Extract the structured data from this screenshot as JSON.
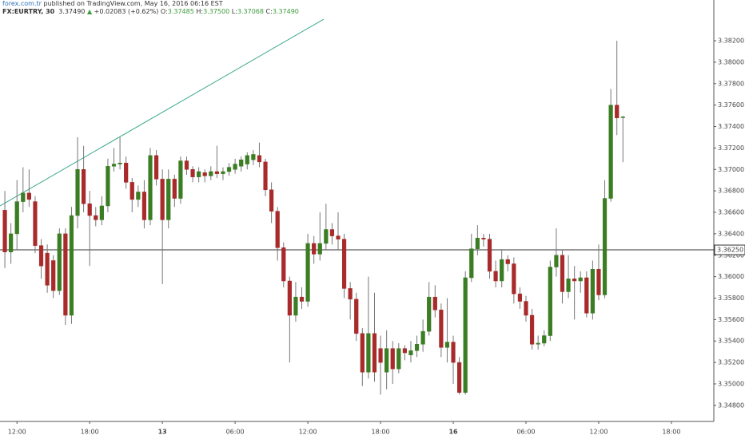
{
  "header": {
    "publisher": "forex.com.tr",
    "published": "published on TradingView.com, May 16, 2016 06:16 EST",
    "symbol": "FX:EURTRY, 30",
    "price": "3.37490",
    "arrow": "▲",
    "change": "+0.02083 (+0.62%)",
    "ohlc": [
      {
        "label": "O:",
        "value": "3.37485"
      },
      {
        "label": "H:",
        "value": "3.37500"
      },
      {
        "label": "L:",
        "value": "3.37068"
      },
      {
        "label": "C:",
        "value": "3.37490"
      }
    ]
  },
  "chart_data": {
    "type": "candlestick",
    "up_color": "#3a7d22",
    "down_color": "#a82a2a",
    "grid": false,
    "open": [
      3.3662,
      3.3623,
      3.364,
      3.367,
      3.3678,
      3.367,
      3.3629,
      3.3622,
      3.3615,
      3.3587,
      3.364,
      3.3564,
      3.3657,
      3.37,
      3.3668,
      3.3657,
      3.3653,
      3.3666,
      3.3703,
      3.3705,
      3.3706,
      3.3688,
      3.3672,
      3.3679,
      3.3653,
      3.3713,
      3.3691,
      3.3653,
      3.3691,
      3.3673,
      3.3708,
      3.37,
      3.3693,
      3.3697,
      3.3694,
      3.3698,
      3.3696,
      3.3698,
      3.37,
      3.3703,
      3.3705,
      3.3709,
      3.3713,
      3.3707,
      3.3681,
      3.3661,
      3.3627,
      3.3596,
      3.3564,
      3.3581,
      3.3577,
      3.3631,
      3.3621,
      3.3631,
      3.3644,
      3.3638,
      3.3635,
      3.3589,
      3.3579,
      3.3547,
      3.3511,
      3.3547,
      3.3533,
      3.3511,
      3.3533,
      3.3514,
      3.3533,
      3.3527,
      3.3531,
      3.3537,
      3.3549,
      3.3581,
      3.3569,
      3.3534,
      3.3539,
      3.352,
      3.3492,
      3.3599,
      3.3626,
      3.3636,
      3.3635,
      3.3605,
      3.3596,
      3.3616,
      3.3612,
      3.3584,
      3.3577,
      3.3564,
      3.3537,
      3.3538,
      3.3545,
      3.3609,
      3.362,
      3.3586,
      3.3598,
      3.3596,
      3.3599,
      3.3566,
      3.3607,
      3.3583,
      3.3673,
      3.376,
      3.37485
    ],
    "high": [
      3.368,
      3.365,
      3.369,
      3.3702,
      3.37,
      3.3675,
      3.3635,
      3.363,
      3.362,
      3.3645,
      3.3645,
      3.3665,
      3.373,
      3.3722,
      3.368,
      3.3665,
      3.3675,
      3.371,
      3.372,
      3.373,
      3.3712,
      3.3692,
      3.3685,
      3.369,
      3.372,
      3.3718,
      3.37,
      3.37,
      3.3695,
      3.3712,
      3.3712,
      3.3703,
      3.3702,
      3.37,
      3.3703,
      3.3722,
      3.3702,
      3.3706,
      3.371,
      3.3712,
      3.3716,
      3.3718,
      3.3725,
      3.371,
      3.3688,
      3.3665,
      3.3632,
      3.36,
      3.3595,
      3.359,
      3.364,
      3.3638,
      3.366,
      3.3668,
      3.365,
      3.366,
      3.364,
      3.3595,
      3.3585,
      3.3552,
      3.36,
      3.3585,
      3.3545,
      3.355,
      3.354,
      3.3538,
      3.3536,
      3.354,
      3.3545,
      3.356,
      3.3595,
      3.3592,
      3.3575,
      3.358,
      3.3545,
      3.3525,
      3.3605,
      3.364,
      3.3648,
      3.364,
      3.364,
      3.3615,
      3.3625,
      3.362,
      3.3618,
      3.359,
      3.3582,
      3.357,
      3.3545,
      3.355,
      3.3615,
      3.3645,
      3.3625,
      3.362,
      3.361,
      3.3605,
      3.3605,
      3.3615,
      3.363,
      3.369,
      3.3775,
      3.382,
      3.375
    ],
    "low": [
      3.3608,
      3.3612,
      3.3625,
      3.366,
      3.3665,
      3.3622,
      3.3598,
      3.3585,
      3.358,
      3.3583,
      3.3555,
      3.3556,
      3.3645,
      3.366,
      3.361,
      3.3647,
      3.3648,
      3.366,
      3.3698,
      3.37,
      3.3682,
      3.366,
      3.3665,
      3.3645,
      3.3648,
      3.3685,
      3.3593,
      3.3645,
      3.3665,
      3.3668,
      3.3695,
      3.3688,
      3.3688,
      3.3688,
      3.369,
      3.3692,
      3.369,
      3.3694,
      3.3696,
      3.3698,
      3.37,
      3.3704,
      3.3702,
      3.3675,
      3.365,
      3.3615,
      3.359,
      3.352,
      3.3558,
      3.357,
      3.3572,
      3.3612,
      3.3615,
      3.3625,
      3.363,
      3.3625,
      3.358,
      3.356,
      3.354,
      3.3498,
      3.3505,
      3.3502,
      3.349,
      3.3495,
      3.35,
      3.351,
      3.3522,
      3.352,
      3.3525,
      3.353,
      3.3545,
      3.3562,
      3.3525,
      3.352,
      3.35,
      3.349,
      3.349,
      3.3595,
      3.362,
      3.3628,
      3.3598,
      3.359,
      3.359,
      3.3605,
      3.3575,
      3.357,
      3.3558,
      3.3532,
      3.3532,
      3.3535,
      3.354,
      3.36,
      3.3575,
      3.358,
      3.356,
      3.3585,
      3.3562,
      3.356,
      3.3578,
      3.358,
      3.367,
      3.3732,
      3.37068
    ],
    "close": [
      3.3623,
      3.364,
      3.367,
      3.3678,
      3.3672,
      3.3629,
      3.361,
      3.3592,
      3.3587,
      3.364,
      3.3564,
      3.3657,
      3.37,
      3.3668,
      3.3657,
      3.3653,
      3.3666,
      3.3703,
      3.3705,
      3.3706,
      3.3688,
      3.3672,
      3.3679,
      3.3653,
      3.3713,
      3.3691,
      3.3653,
      3.3691,
      3.3673,
      3.3708,
      3.37,
      3.3693,
      3.3698,
      3.3694,
      3.3698,
      3.3696,
      3.3698,
      3.3702,
      3.3705,
      3.3709,
      3.3713,
      3.3714,
      3.3707,
      3.3681,
      3.3661,
      3.3627,
      3.3596,
      3.3564,
      3.3581,
      3.3577,
      3.3631,
      3.3621,
      3.3631,
      3.3644,
      3.3638,
      3.3635,
      3.3589,
      3.3579,
      3.3547,
      3.3511,
      3.3547,
      3.3511,
      3.352,
      3.3533,
      3.3514,
      3.3533,
      3.3529,
      3.3531,
      3.3537,
      3.3549,
      3.3581,
      3.3569,
      3.3534,
      3.3539,
      3.352,
      3.3492,
      3.3599,
      3.3626,
      3.3636,
      3.3635,
      3.3605,
      3.3596,
      3.3616,
      3.3612,
      3.3584,
      3.3577,
      3.3564,
      3.3537,
      3.3538,
      3.3545,
      3.3609,
      3.362,
      3.3586,
      3.3598,
      3.3596,
      3.3599,
      3.3566,
      3.3607,
      3.3583,
      3.3673,
      3.376,
      3.3748,
      3.3749
    ],
    "xlim": [
      -0.8,
      117.0
    ],
    "ylim": [
      3.3465,
      3.3858
    ],
    "xticks": [
      {
        "value": 2,
        "label": "12:00"
      },
      {
        "value": 14,
        "label": "18:00"
      },
      {
        "value": 26,
        "label": "13"
      },
      {
        "value": 38,
        "label": "06:00"
      },
      {
        "value": 50,
        "label": "12:00"
      },
      {
        "value": 62,
        "label": "18:00"
      },
      {
        "value": 74,
        "label": "16"
      },
      {
        "value": 86,
        "label": "06:00"
      },
      {
        "value": 98,
        "label": "12:00"
      },
      {
        "value": 110,
        "label": "18:00"
      }
    ],
    "yticks": [
      {
        "value": 3.348,
        "label": "3.34800"
      },
      {
        "value": 3.35,
        "label": "3.35000"
      },
      {
        "value": 3.352,
        "label": "3.35200"
      },
      {
        "value": 3.354,
        "label": "3.35400"
      },
      {
        "value": 3.356,
        "label": "3.35600"
      },
      {
        "value": 3.358,
        "label": "3.35800"
      },
      {
        "value": 3.36,
        "label": "3.36000"
      },
      {
        "value": 3.362,
        "label": "3.36200"
      },
      {
        "value": 3.364,
        "label": "3.36400"
      },
      {
        "value": 3.366,
        "label": "3.36600"
      },
      {
        "value": 3.368,
        "label": "3.36800"
      },
      {
        "value": 3.37,
        "label": "3.37000"
      },
      {
        "value": 3.372,
        "label": "3.37200"
      },
      {
        "value": 3.374,
        "label": "3.37400"
      },
      {
        "value": 3.376,
        "label": "3.37600"
      },
      {
        "value": 3.378,
        "label": "3.37800"
      },
      {
        "value": 3.38,
        "label": "3.38000"
      },
      {
        "value": 3.382,
        "label": "3.38200"
      }
    ],
    "hline": {
      "value": 3.3625,
      "label": "3.36250",
      "color": "#333333"
    },
    "trendline": {
      "x": [
        -0.8,
        52.6
      ],
      "y": [
        3.3666,
        3.384
      ],
      "color": "#3aa88c"
    }
  }
}
